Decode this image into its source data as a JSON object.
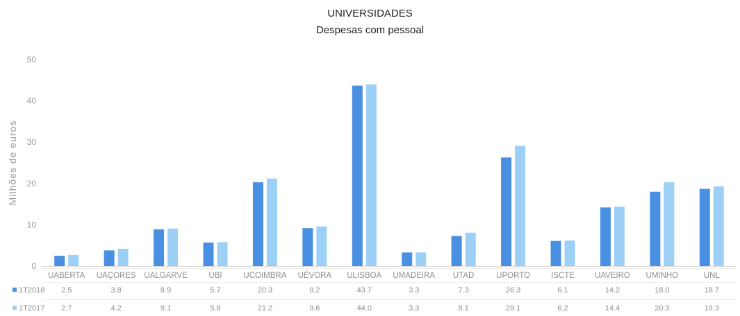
{
  "chart_data": {
    "type": "bar",
    "title": "UNIVERSIDADES",
    "subtitle": "Despesas com pessoal",
    "ylabel": "Milhões de euros",
    "xlabel": "",
    "ylim": [
      0,
      50
    ],
    "yticks": [
      0,
      10,
      20,
      30,
      40,
      50
    ],
    "grid": false,
    "legend": "bottom-left table",
    "categories": [
      "UABERTA",
      "UAÇORES",
      "UALGARVE",
      "UBI",
      "UCOIMBRA",
      "UÉVORA",
      "ULISBOA",
      "UMADEIRA",
      "UTAD",
      "UPORTO",
      "ISCTE",
      "UAVEIRO",
      "UMINHO",
      "UNL"
    ],
    "series": [
      {
        "name": "1T2018",
        "color": "#4a90e2",
        "values": [
          2.5,
          3.8,
          8.9,
          5.7,
          20.3,
          9.2,
          43.7,
          3.3,
          7.3,
          26.3,
          6.1,
          14.2,
          18.0,
          18.7
        ],
        "labels": [
          "2.5",
          "3.8",
          "8.9",
          "5.7",
          "20.3",
          "9.2",
          "43.7",
          "3.3",
          "7.3",
          "26.3",
          "6.1",
          "14.2",
          "18.0",
          "18.7"
        ]
      },
      {
        "name": "1T2017",
        "color": "#9dd0f7",
        "values": [
          2.7,
          4.2,
          9.1,
          5.8,
          21.2,
          9.6,
          44.0,
          3.3,
          8.1,
          29.1,
          6.2,
          14.4,
          20.3,
          19.3
        ],
        "labels": [
          "2.7",
          "4.2",
          "9.1",
          "5.8",
          "21.2",
          "9.6",
          "44.0",
          "3.3",
          "8.1",
          "29.1",
          "6.2",
          "14.4",
          "20.3",
          "19.3"
        ]
      }
    ]
  }
}
